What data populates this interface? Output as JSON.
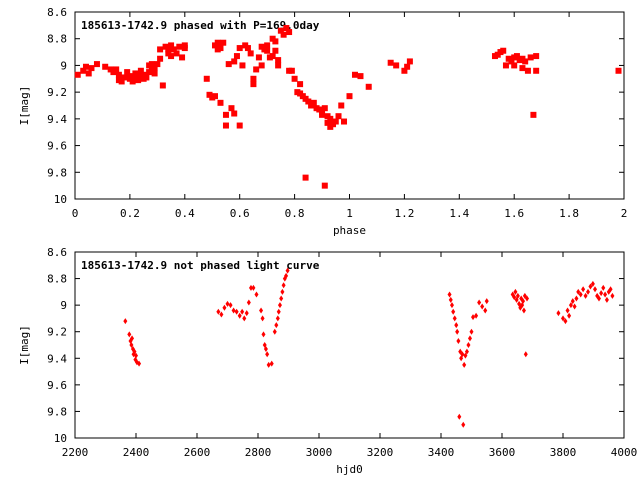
{
  "chart_data": [
    {
      "type": "scatter",
      "title": "185613-1742.9 phased with P=169.0day",
      "xlabel": "phase",
      "ylabel": "I[mag]",
      "xlim": [
        0,
        2
      ],
      "ylim": [
        10,
        8.6
      ],
      "y_reversed": true,
      "grid": false,
      "color": "#ff0000",
      "xticks": [
        0,
        0.2,
        0.4,
        0.6,
        0.8,
        1,
        1.2,
        1.4,
        1.6,
        1.8,
        2
      ],
      "xtick_labels": [
        "0",
        "0.2",
        "0.4",
        "0.6",
        "0.8",
        "1",
        "1.2",
        "1.4",
        "1.6",
        "1.8",
        "2"
      ],
      "yticks": [
        8.6,
        8.8,
        9,
        9.2,
        9.4,
        9.6,
        9.8,
        10
      ],
      "ytick_labels": [
        "8.6",
        "8.8",
        "9",
        "9.2",
        "9.4",
        "9.6",
        "9.8",
        "10"
      ],
      "series": [
        {
          "points": [
            [
              0.01,
              9.07
            ],
            [
              0.03,
              9.04
            ],
            [
              0.04,
              9.01
            ],
            [
              0.05,
              9.06
            ],
            [
              0.06,
              9.02
            ],
            [
              0.08,
              8.99
            ],
            [
              0.11,
              9.01
            ],
            [
              0.13,
              9.03
            ],
            [
              0.14,
              9.05
            ],
            [
              0.15,
              9.03
            ],
            [
              0.16,
              9.07
            ],
            [
              0.16,
              9.11
            ],
            [
              0.17,
              9.12
            ],
            [
              0.18,
              9.09
            ],
            [
              0.19,
              9.05
            ],
            [
              0.2,
              9.08
            ],
            [
              0.2,
              9.1
            ],
            [
              0.21,
              9.12
            ],
            [
              0.22,
              9.06
            ],
            [
              0.22,
              9.09
            ],
            [
              0.23,
              9.11
            ],
            [
              0.23,
              9.08
            ],
            [
              0.24,
              9.04
            ],
            [
              0.25,
              9.1
            ],
            [
              0.25,
              9.07
            ],
            [
              0.26,
              9.09
            ],
            [
              0.27,
              9.0
            ],
            [
              0.27,
              9.05
            ],
            [
              0.28,
              8.99
            ],
            [
              0.28,
              9.03
            ],
            [
              0.29,
              9.06
            ],
            [
              0.29,
              9.02
            ],
            [
              0.3,
              8.99
            ],
            [
              0.31,
              8.95
            ],
            [
              0.31,
              8.88
            ],
            [
              0.32,
              9.15
            ],
            [
              0.33,
              8.86
            ],
            [
              0.34,
              8.91
            ],
            [
              0.34,
              8.88
            ],
            [
              0.35,
              8.85
            ],
            [
              0.35,
              8.93
            ],
            [
              0.36,
              8.88
            ],
            [
              0.37,
              8.91
            ],
            [
              0.38,
              8.86
            ],
            [
              0.39,
              8.94
            ],
            [
              0.4,
              8.87
            ],
            [
              0.4,
              8.85
            ],
            [
              0.48,
              9.1
            ],
            [
              0.49,
              9.22
            ],
            [
              0.5,
              9.24
            ],
            [
              0.51,
              9.23
            ],
            [
              0.51,
              8.85
            ],
            [
              0.52,
              8.88
            ],
            [
              0.52,
              8.83
            ],
            [
              0.53,
              8.87
            ],
            [
              0.53,
              9.28
            ],
            [
              0.54,
              8.83
            ],
            [
              0.55,
              9.37
            ],
            [
              0.55,
              9.45
            ],
            [
              0.56,
              8.99
            ],
            [
              0.57,
              9.32
            ],
            [
              0.58,
              9.36
            ],
            [
              0.58,
              8.97
            ],
            [
              0.59,
              8.93
            ],
            [
              0.6,
              8.87
            ],
            [
              0.6,
              9.45
            ],
            [
              0.61,
              9.0
            ],
            [
              0.62,
              8.85
            ],
            [
              0.63,
              8.87
            ],
            [
              0.64,
              8.91
            ],
            [
              0.65,
              9.1
            ],
            [
              0.65,
              9.14
            ],
            [
              0.66,
              9.03
            ],
            [
              0.67,
              8.94
            ],
            [
              0.68,
              9.0
            ],
            [
              0.68,
              8.86
            ],
            [
              0.69,
              8.88
            ],
            [
              0.7,
              8.89
            ],
            [
              0.7,
              8.85
            ],
            [
              0.71,
              8.94
            ],
            [
              0.72,
              8.93
            ],
            [
              0.72,
              8.8
            ],
            [
              0.73,
              8.89
            ],
            [
              0.73,
              8.82
            ],
            [
              0.74,
              9.0
            ],
            [
              0.74,
              8.96
            ],
            [
              0.75,
              8.74
            ],
            [
              0.76,
              8.77
            ],
            [
              0.77,
              8.72
            ],
            [
              0.78,
              8.75
            ],
            [
              0.78,
              9.04
            ],
            [
              0.79,
              9.04
            ],
            [
              0.8,
              9.1
            ],
            [
              0.81,
              9.2
            ],
            [
              0.82,
              9.21
            ],
            [
              0.82,
              9.14
            ],
            [
              0.83,
              9.23
            ],
            [
              0.84,
              9.25
            ],
            [
              0.84,
              9.84
            ],
            [
              0.85,
              9.27
            ],
            [
              0.86,
              9.3
            ],
            [
              0.87,
              9.28
            ],
            [
              0.88,
              9.32
            ],
            [
              0.89,
              9.33
            ],
            [
              0.9,
              9.35
            ],
            [
              0.9,
              9.37
            ],
            [
              0.91,
              9.32
            ],
            [
              0.91,
              9.9
            ],
            [
              0.92,
              9.38
            ],
            [
              0.92,
              9.43
            ],
            [
              0.93,
              9.46
            ],
            [
              0.93,
              9.4
            ],
            [
              0.94,
              9.44
            ],
            [
              0.95,
              9.42
            ],
            [
              0.96,
              9.38
            ],
            [
              0.97,
              9.3
            ],
            [
              0.98,
              9.42
            ],
            [
              1.0,
              9.23
            ],
            [
              1.02,
              9.07
            ],
            [
              1.04,
              9.08
            ],
            [
              1.07,
              9.16
            ],
            [
              1.15,
              8.98
            ],
            [
              1.17,
              9.0
            ],
            [
              1.2,
              9.04
            ],
            [
              1.21,
              9.01
            ],
            [
              1.22,
              8.97
            ],
            [
              1.53,
              8.93
            ],
            [
              1.54,
              8.92
            ],
            [
              1.55,
              8.9
            ],
            [
              1.56,
              8.89
            ],
            [
              1.57,
              9.0
            ],
            [
              1.58,
              8.95
            ],
            [
              1.59,
              8.97
            ],
            [
              1.6,
              8.94
            ],
            [
              1.6,
              9.0
            ],
            [
              1.61,
              8.93
            ],
            [
              1.62,
              8.96
            ],
            [
              1.63,
              9.02
            ],
            [
              1.63,
              8.95
            ],
            [
              1.64,
              8.97
            ],
            [
              1.65,
              9.04
            ],
            [
              1.66,
              8.94
            ],
            [
              1.67,
              9.37
            ],
            [
              1.68,
              9.04
            ],
            [
              1.68,
              8.93
            ],
            [
              1.98,
              9.04
            ]
          ]
        }
      ]
    },
    {
      "type": "scatter",
      "title": "185613-1742.9 not phased light curve",
      "xlabel": "hjd0",
      "ylabel": "I[mag]",
      "xlim": [
        2200,
        4000
      ],
      "ylim": [
        10,
        8.6
      ],
      "y_reversed": true,
      "grid": false,
      "color": "#ff0000",
      "xticks": [
        2200,
        2400,
        2600,
        2800,
        3000,
        3200,
        3400,
        3600,
        3800,
        4000
      ],
      "xtick_labels": [
        "2200",
        "2400",
        "2600",
        "2800",
        "3000",
        "3200",
        "3400",
        "3600",
        "3800",
        "4000"
      ],
      "yticks": [
        8.6,
        8.8,
        9,
        9.2,
        9.4,
        9.6,
        9.8,
        10
      ],
      "ytick_labels": [
        "8.6",
        "8.8",
        "9",
        "9.2",
        "9.4",
        "9.6",
        "9.8",
        "10"
      ],
      "series": [
        {
          "points": [
            [
              2365,
              9.12
            ],
            [
              2378,
              9.22
            ],
            [
              2382,
              9.27
            ],
            [
              2385,
              9.3
            ],
            [
              2387,
              9.25
            ],
            [
              2390,
              9.33
            ],
            [
              2392,
              9.37
            ],
            [
              2395,
              9.35
            ],
            [
              2398,
              9.41
            ],
            [
              2400,
              9.38
            ],
            [
              2403,
              9.43
            ],
            [
              2410,
              9.44
            ],
            [
              2670,
              9.05
            ],
            [
              2680,
              9.07
            ],
            [
              2690,
              9.02
            ],
            [
              2700,
              8.99
            ],
            [
              2710,
              9.0
            ],
            [
              2720,
              9.04
            ],
            [
              2730,
              9.05
            ],
            [
              2740,
              9.08
            ],
            [
              2748,
              9.05
            ],
            [
              2755,
              9.1
            ],
            [
              2763,
              9.06
            ],
            [
              2770,
              8.98
            ],
            [
              2777,
              8.87
            ],
            [
              2785,
              8.87
            ],
            [
              2795,
              8.92
            ],
            [
              2810,
              9.04
            ],
            [
              2815,
              9.1
            ],
            [
              2818,
              9.22
            ],
            [
              2822,
              9.3
            ],
            [
              2826,
              9.33
            ],
            [
              2830,
              9.37
            ],
            [
              2835,
              9.45
            ],
            [
              2845,
              9.44
            ],
            [
              2855,
              9.2
            ],
            [
              2860,
              9.15
            ],
            [
              2865,
              9.1
            ],
            [
              2868,
              9.05
            ],
            [
              2872,
              9.0
            ],
            [
              2876,
              8.95
            ],
            [
              2880,
              8.9
            ],
            [
              2884,
              8.85
            ],
            [
              2888,
              8.8
            ],
            [
              2892,
              8.78
            ],
            [
              2897,
              8.74
            ],
            [
              3428,
              8.92
            ],
            [
              3432,
              8.96
            ],
            [
              3436,
              9.0
            ],
            [
              3440,
              9.05
            ],
            [
              3445,
              9.1
            ],
            [
              3450,
              9.15
            ],
            [
              3453,
              9.2
            ],
            [
              3457,
              9.27
            ],
            [
              3460,
              9.84
            ],
            [
              3463,
              9.35
            ],
            [
              3466,
              9.4
            ],
            [
              3470,
              9.37
            ],
            [
              3473,
              9.9
            ],
            [
              3476,
              9.45
            ],
            [
              3480,
              9.38
            ],
            [
              3485,
              9.35
            ],
            [
              3490,
              9.3
            ],
            [
              3495,
              9.25
            ],
            [
              3500,
              9.2
            ],
            [
              3505,
              9.09
            ],
            [
              3515,
              9.08
            ],
            [
              3525,
              8.98
            ],
            [
              3535,
              9.01
            ],
            [
              3545,
              9.04
            ],
            [
              3550,
              8.97
            ],
            [
              3635,
              8.92
            ],
            [
              3640,
              8.94
            ],
            [
              3644,
              8.9
            ],
            [
              3648,
              8.96
            ],
            [
              3652,
              8.93
            ],
            [
              3656,
              8.99
            ],
            [
              3660,
              9.02
            ],
            [
              3663,
              8.95
            ],
            [
              3666,
              9.0
            ],
            [
              3669,
              8.97
            ],
            [
              3672,
              9.04
            ],
            [
              3675,
              8.93
            ],
            [
              3678,
              9.37
            ],
            [
              3682,
              8.95
            ],
            [
              3785,
              9.06
            ],
            [
              3800,
              9.1
            ],
            [
              3808,
              9.12
            ],
            [
              3815,
              9.04
            ],
            [
              3820,
              9.08
            ],
            [
              3826,
              9.0
            ],
            [
              3832,
              8.97
            ],
            [
              3838,
              9.01
            ],
            [
              3844,
              8.95
            ],
            [
              3850,
              8.9
            ],
            [
              3858,
              8.92
            ],
            [
              3866,
              8.88
            ],
            [
              3874,
              8.93
            ],
            [
              3882,
              8.9
            ],
            [
              3890,
              8.86
            ],
            [
              3898,
              8.84
            ],
            [
              3905,
              8.88
            ],
            [
              3912,
              8.93
            ],
            [
              3918,
              8.95
            ],
            [
              3925,
              8.91
            ],
            [
              3932,
              8.87
            ],
            [
              3938,
              8.92
            ],
            [
              3944,
              8.96
            ],
            [
              3950,
              8.9
            ],
            [
              3956,
              8.88
            ],
            [
              3962,
              8.93
            ]
          ]
        }
      ]
    }
  ]
}
